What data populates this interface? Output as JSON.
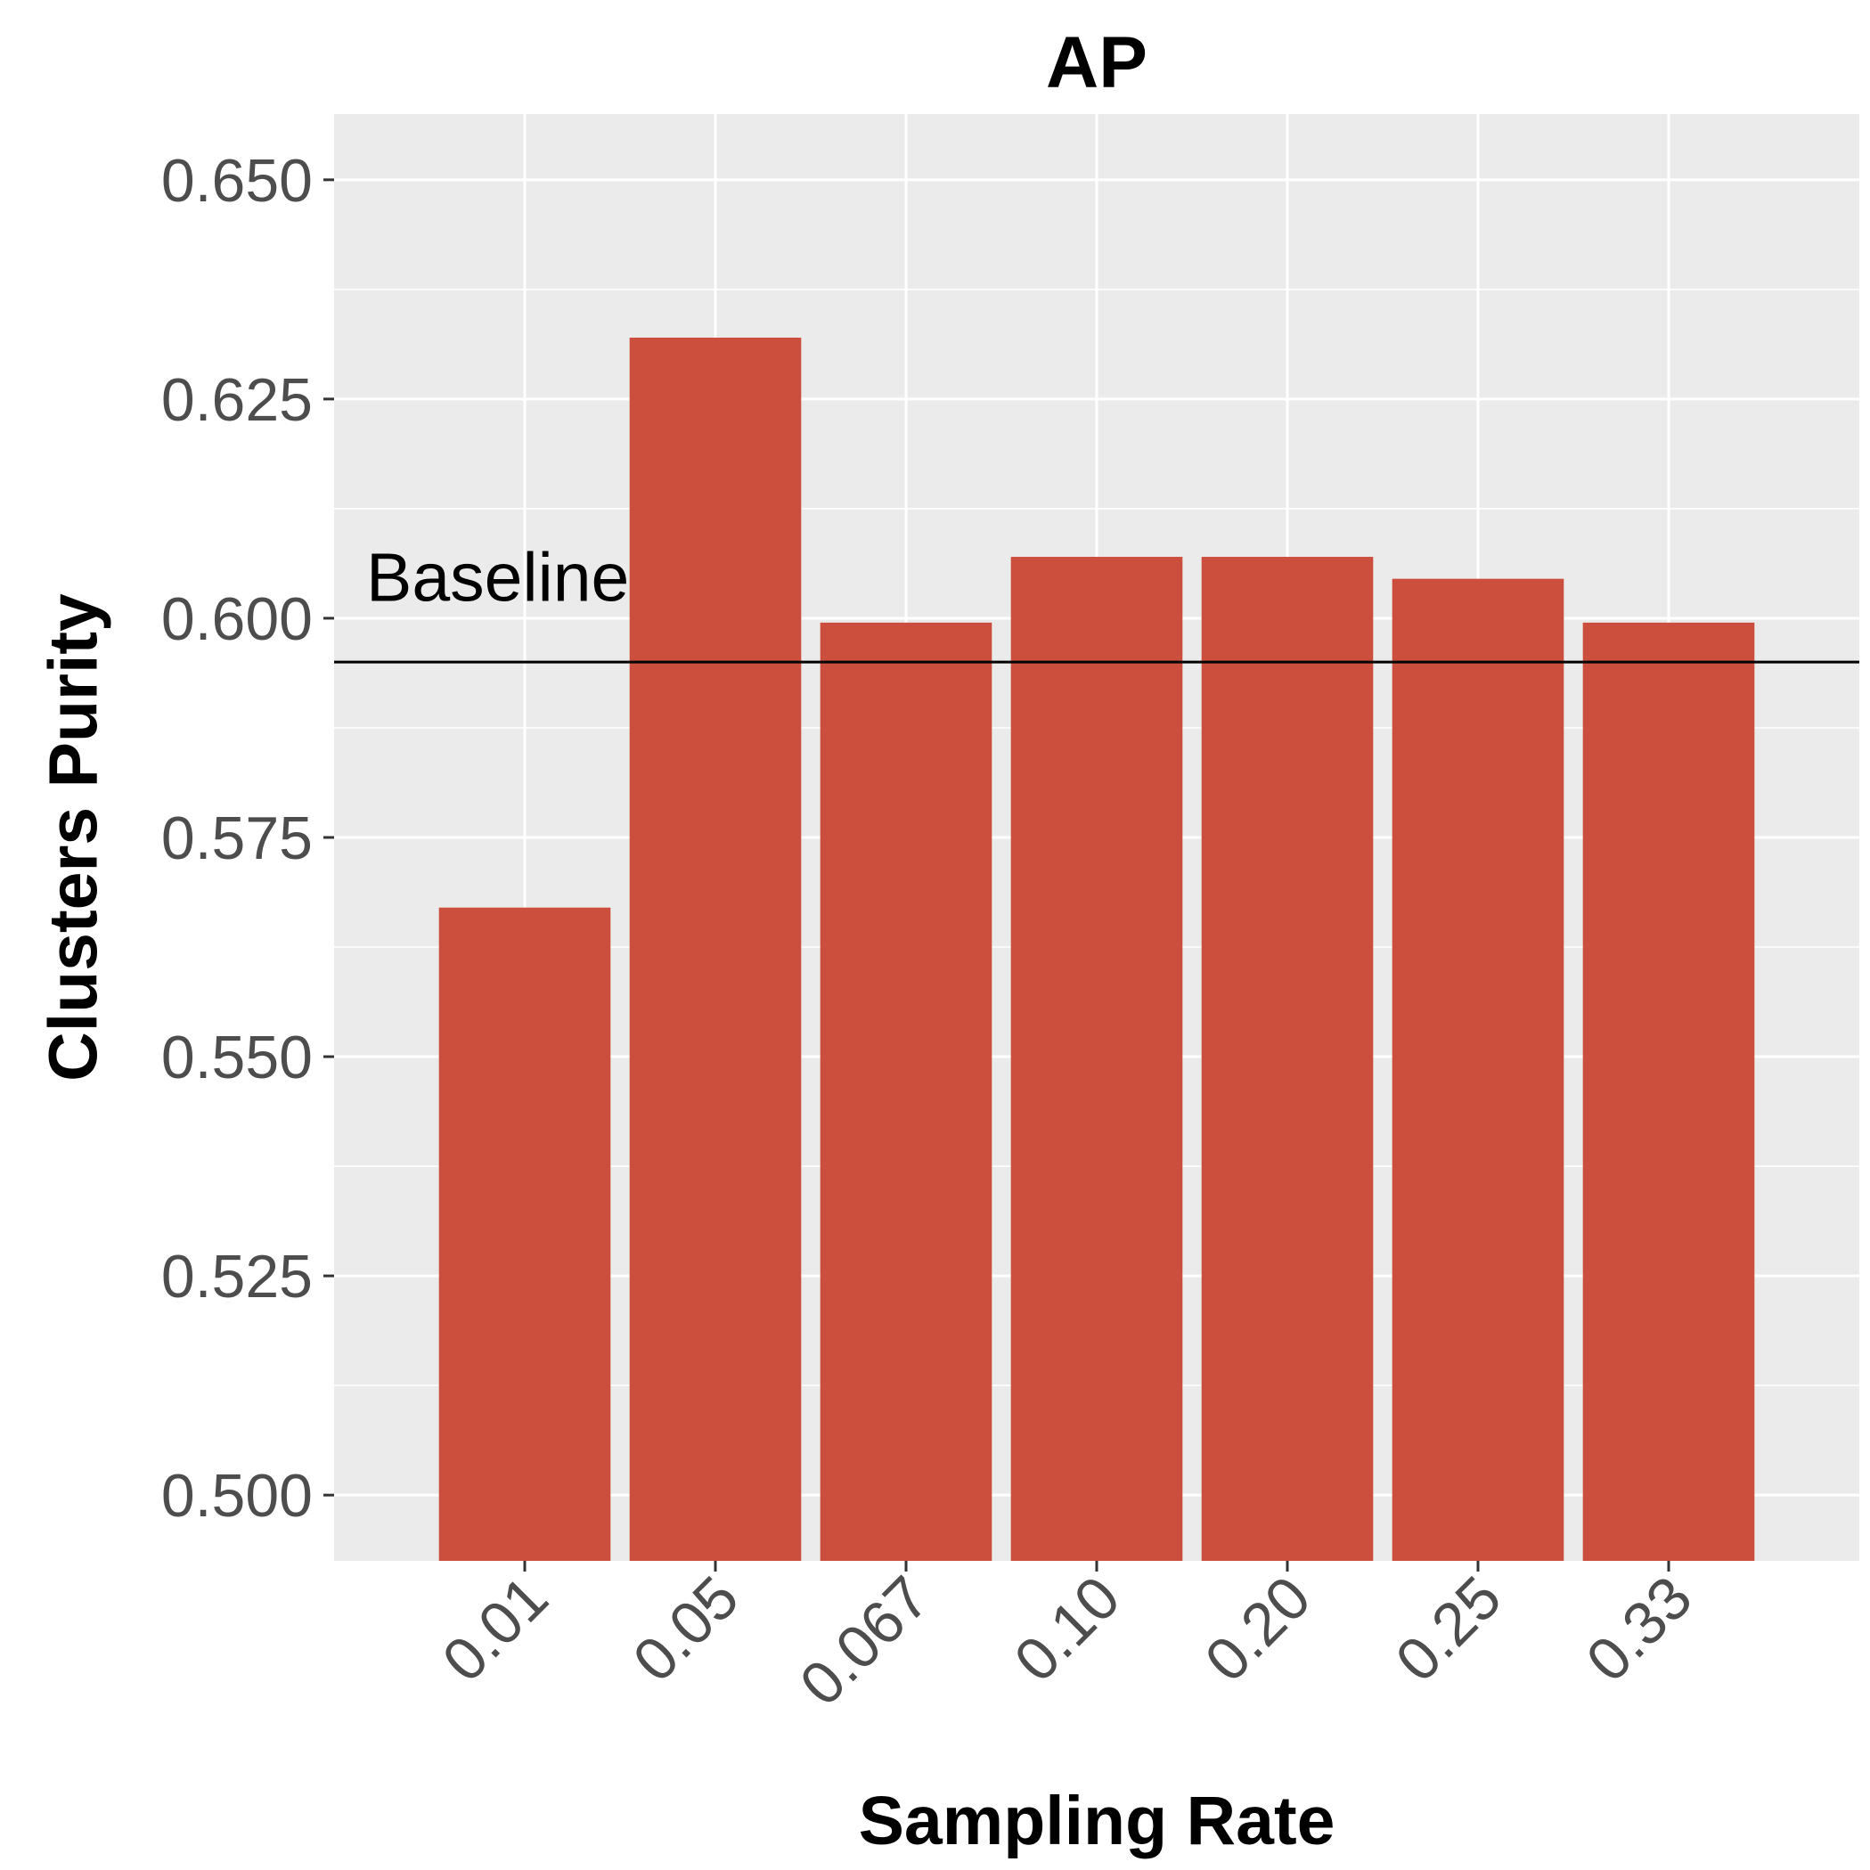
{
  "chart_data": {
    "type": "bar",
    "title": "AP",
    "xlabel": "Sampling Rate",
    "ylabel": "Clusters Purity",
    "categories": [
      "0.01",
      "0.05",
      "0.067",
      "0.10",
      "0.20",
      "0.25",
      "0.33"
    ],
    "values": [
      0.567,
      0.632,
      0.5995,
      0.607,
      0.607,
      0.6045,
      0.5995
    ],
    "ylim": [
      0.4925,
      0.6575
    ],
    "yticks": [
      0.5,
      0.525,
      0.55,
      0.575,
      0.6,
      0.625,
      0.65
    ],
    "ytick_labels": [
      "0.500",
      "0.525",
      "0.550",
      "0.575",
      "0.600",
      "0.625",
      "0.650"
    ],
    "baseline": {
      "value": 0.595,
      "label": "Baseline"
    },
    "grid": true,
    "legend": "none",
    "colors": {
      "bar": "#cb4f3c",
      "panel_background": "#ebebeb",
      "grid": "#ffffff",
      "baseline": "#000000",
      "tick_text": "#4d4d4d"
    }
  }
}
